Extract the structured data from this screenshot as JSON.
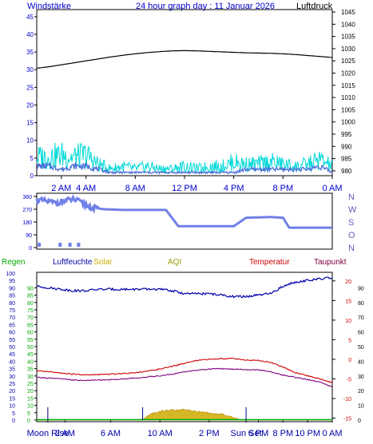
{
  "header": {
    "title": "24 hour graph day : 11 Januar 2026",
    "left_label": "Windstärke",
    "right_label": "Luftdruck"
  },
  "colors": {
    "background": "#ffffff",
    "plot_border": "#000000",
    "wind_speed": "#00d8d8",
    "wind_avg": "#4a6fd8",
    "wind_dir": "#7080e8",
    "pressure": "#000000",
    "left_axis_text": "#0000cc",
    "compass_text": "#6060c0",
    "rain": "#00aa00",
    "humidity": "#0000aa",
    "solar": "#ccaa00",
    "aqi": "#999900",
    "temperature": "#cc0000",
    "dewpoint": "#800080",
    "dewpoint_label": "#800040"
  },
  "chart_data": [
    {
      "type": "line",
      "name": "wind_and_pressure",
      "title": "24 hour graph day : 11 Januar 2026",
      "x_ticks": [
        "2 AM",
        "4 AM",
        "8 AM",
        "12 PM",
        "4 PM",
        "8 PM",
        "0 AM"
      ],
      "y_left": {
        "label": "Windstärke",
        "ticks": [
          0,
          5,
          10,
          15,
          20,
          25,
          30,
          35,
          40,
          45
        ],
        "range": [
          0,
          47
        ]
      },
      "y_right": {
        "label": "Luftdruck",
        "ticks": [
          980,
          985,
          990,
          995,
          1000,
          1005,
          1010,
          1015,
          1020,
          1025,
          1030,
          1035,
          1040,
          1045
        ],
        "range": [
          978,
          1046
        ]
      },
      "pressure": {
        "hours": [
          0,
          1,
          2,
          3,
          4,
          5,
          6,
          7,
          8,
          9,
          10,
          11,
          12,
          13,
          14,
          15,
          16,
          17,
          18,
          19,
          20,
          21,
          22,
          23,
          24
        ],
        "values": [
          1022.0,
          1022.6,
          1023.4,
          1024.2,
          1025.0,
          1025.8,
          1026.6,
          1027.3,
          1027.9,
          1028.4,
          1028.8,
          1029.1,
          1029.2,
          1029.1,
          1028.9,
          1028.7,
          1028.5,
          1028.3,
          1028.2,
          1028.1,
          1027.9,
          1027.6,
          1027.2,
          1026.8,
          1026.4
        ]
      },
      "wind_gust": {
        "hours": [
          0,
          1,
          2,
          3,
          4,
          5,
          6,
          7,
          8,
          9,
          10,
          11,
          12,
          13,
          14,
          15,
          16,
          17,
          18,
          19,
          20,
          21,
          22,
          23,
          24
        ],
        "values": [
          8,
          8,
          9,
          8,
          9,
          5,
          3,
          4,
          3,
          4,
          3,
          3,
          4,
          3,
          4,
          4,
          6,
          5,
          5,
          6,
          5,
          4,
          5,
          7,
          4
        ]
      },
      "wind_avg": {
        "hours": [
          0,
          1,
          2,
          3,
          4,
          5,
          6,
          7,
          8,
          9,
          10,
          11,
          12,
          13,
          14,
          15,
          16,
          17,
          18,
          19,
          20,
          21,
          22,
          23,
          24
        ],
        "values": [
          3,
          3,
          2,
          3,
          3,
          2,
          1,
          1,
          1,
          1,
          1,
          1,
          1,
          1,
          1,
          1,
          1,
          2,
          2,
          2,
          2,
          2,
          2,
          3,
          1
        ]
      }
    },
    {
      "type": "line",
      "name": "wind_direction",
      "y_left_ticks": [
        0,
        90,
        180,
        270,
        360
      ],
      "compass_labels": [
        "N",
        "W",
        "S",
        "O",
        "N"
      ],
      "range": [
        0,
        360
      ],
      "direction": {
        "hours": [
          0,
          1.5,
          3,
          4.5,
          5.5,
          7,
          8,
          10.5,
          11.5,
          16,
          17,
          19,
          20,
          20.5,
          24
        ],
        "values": [
          335,
          315,
          340,
          280,
          270,
          265,
          265,
          265,
          150,
          150,
          210,
          215,
          210,
          140,
          140
        ]
      }
    },
    {
      "type": "line",
      "name": "climate",
      "series_labels": {
        "rain": "Regen",
        "humidity": "Luftfeuchte",
        "solar": "Solar",
        "aqi": "AQI",
        "temperature": "Temperatur",
        "dewpoint": "Taupunkt"
      },
      "x_ticks": [
        "Moon Rise",
        "2 AM",
        "6 AM",
        "10 AM",
        "2 PM",
        "Sun Set",
        "6 PM",
        "8 PM",
        "10 PM",
        "0 AM"
      ],
      "y_left_ticks": [
        0,
        5,
        10,
        15,
        20,
        25,
        30,
        35,
        40,
        45,
        50,
        55,
        60,
        65,
        70,
        75,
        80,
        85,
        90,
        95,
        100
      ],
      "y_left_inner_ticks": [
        0,
        5,
        10,
        15,
        20,
        25,
        30,
        35,
        40,
        45,
        50,
        55,
        60,
        65,
        70,
        75,
        80,
        85,
        90
      ],
      "y_temp_ticks": [
        -15,
        -10,
        -5,
        0,
        5,
        10,
        15,
        20
      ],
      "y_right_ticks": [
        0,
        10,
        20,
        30,
        40,
        50,
        60,
        70,
        80,
        90
      ],
      "humidity": {
        "hours": [
          0,
          1,
          2,
          3,
          4,
          5,
          6,
          7,
          8,
          9,
          10,
          11,
          12,
          13,
          14,
          15,
          16,
          17,
          18,
          19,
          20,
          21,
          22,
          23,
          24
        ],
        "values": [
          91,
          90,
          89,
          88,
          88,
          89,
          89,
          89,
          89,
          89,
          89,
          88,
          86,
          86,
          86,
          85,
          84,
          84,
          85,
          86,
          91,
          94,
          95,
          96,
          97
        ]
      },
      "temperature": {
        "hours": [
          0,
          1,
          2,
          3,
          4,
          5,
          6,
          7,
          8,
          9,
          10,
          11,
          12,
          13,
          14,
          15,
          16,
          17,
          18,
          19,
          20,
          21,
          22,
          23,
          24
        ],
        "values": [
          -3.0,
          -3.2,
          -3.5,
          -3.8,
          -4.0,
          -3.9,
          -3.8,
          -3.6,
          -3.4,
          -3.0,
          -2.5,
          -1.8,
          -1.0,
          -0.3,
          0.0,
          0.2,
          0.2,
          -0.2,
          -0.3,
          -0.8,
          -2.0,
          -3.4,
          -4.2,
          -5.0,
          -6.0
        ]
      },
      "dewpoint": {
        "hours": [
          0,
          1,
          2,
          3,
          4,
          5,
          6,
          7,
          8,
          9,
          10,
          11,
          12,
          13,
          14,
          15,
          16,
          17,
          18,
          19,
          20,
          21,
          22,
          23,
          24
        ],
        "values": [
          -4.6,
          -4.8,
          -5.0,
          -5.3,
          -5.4,
          -5.3,
          -5.2,
          -5.0,
          -4.8,
          -4.5,
          -4.2,
          -3.8,
          -3.2,
          -2.8,
          -2.5,
          -2.4,
          -2.5,
          -2.6,
          -2.7,
          -3.2,
          -4.0,
          -4.6,
          -5.2,
          -5.8,
          -7.0
        ]
      },
      "solar": {
        "hours": [
          0,
          8.5,
          9,
          10,
          11,
          12,
          13,
          14,
          15,
          16,
          16.5,
          24
        ],
        "values": [
          0,
          0,
          3,
          6,
          7,
          7,
          6,
          5,
          4,
          2,
          0,
          0
        ]
      },
      "rain": {
        "hours": [
          0,
          24
        ],
        "values": [
          0,
          0
        ]
      }
    }
  ]
}
